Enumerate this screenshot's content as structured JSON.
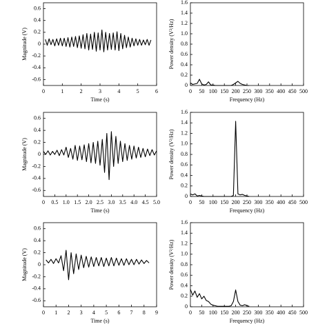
{
  "chart_data": [
    {
      "type": "line",
      "xlabel": "Time (s)",
      "ylabel": "Magnitude (V)",
      "color": "#000000",
      "xlim": [
        0,
        6
      ],
      "xticks": [
        0,
        1,
        2,
        3,
        4,
        5,
        6
      ],
      "ylim": [
        -0.7,
        0.7
      ],
      "yticks": [
        -0.6,
        -0.4,
        -0.2,
        0,
        0.2,
        0.4,
        0.6
      ],
      "x": [
        0.1,
        0.2,
        0.3,
        0.4,
        0.5,
        0.6,
        0.7,
        0.8,
        0.9,
        1.0,
        1.1,
        1.2,
        1.3,
        1.4,
        1.5,
        1.6,
        1.7,
        1.8,
        1.9,
        2.0,
        2.1,
        2.2,
        2.3,
        2.4,
        2.5,
        2.6,
        2.7,
        2.8,
        2.9,
        3.0,
        3.1,
        3.2,
        3.3,
        3.4,
        3.5,
        3.6,
        3.7,
        3.8,
        3.9,
        4.0,
        4.1,
        4.2,
        4.3,
        4.4,
        4.5,
        4.6,
        4.7,
        4.8,
        4.9,
        5.0,
        5.1,
        5.2,
        5.3,
        5.4,
        5.5,
        5.6,
        5.7
      ],
      "values": [
        0.08,
        -0.02,
        0.09,
        -0.01,
        0.08,
        -0.03,
        0.09,
        -0.02,
        0.1,
        -0.03,
        0.1,
        -0.04,
        0.11,
        -0.05,
        0.12,
        -0.04,
        0.13,
        -0.06,
        0.14,
        -0.07,
        0.16,
        -0.08,
        0.18,
        -0.1,
        0.17,
        -0.09,
        0.2,
        -0.12,
        0.19,
        -0.1,
        0.24,
        -0.13,
        0.2,
        -0.1,
        0.18,
        -0.09,
        0.19,
        -0.1,
        0.21,
        -0.11,
        0.18,
        -0.08,
        0.15,
        -0.06,
        0.12,
        -0.05,
        0.1,
        -0.03,
        0.09,
        -0.02,
        0.08,
        -0.02,
        0.07,
        -0.01,
        0.08,
        -0.02,
        0.07
      ]
    },
    {
      "type": "line",
      "xlabel": "Frequency (Hz)",
      "ylabel": "Power density (V²/Hz)",
      "color": "#000000",
      "xlim": [
        0,
        500
      ],
      "xticks": [
        0,
        50,
        100,
        150,
        200,
        250,
        300,
        350,
        400,
        450,
        500
      ],
      "ylim": [
        0,
        1.6
      ],
      "yticks": [
        0,
        0.2,
        0.4,
        0.6,
        0.8,
        {
          "value": 1,
          "label": "1.0"
        },
        1.2,
        1.4,
        1.6
      ],
      "x": [
        0,
        10,
        20,
        30,
        40,
        50,
        60,
        70,
        80,
        90,
        100,
        110,
        120,
        130,
        140,
        150,
        160,
        170,
        180,
        190,
        200,
        210,
        220,
        230,
        240,
        250,
        260
      ],
      "values": [
        0.05,
        0.02,
        0.03,
        0.04,
        0.12,
        0.03,
        0.01,
        0.02,
        0.07,
        0.01,
        0.01,
        0,
        0,
        0,
        0,
        0,
        0,
        0,
        0,
        0.02,
        0.05,
        0.08,
        0.04,
        0.02,
        0.01,
        0,
        0
      ]
    },
    {
      "type": "line",
      "xlabel": "Time (s)",
      "ylabel": "Magnitude (V)",
      "color": "#000000",
      "xlim": [
        0,
        5
      ],
      "xticks": [
        0,
        0.5,
        {
          "value": 1,
          "label": "1.0"
        },
        1.5,
        {
          "value": 2,
          "label": "2.0"
        },
        2.5,
        {
          "value": 3,
          "label": "3.0"
        },
        3.5,
        {
          "value": 4,
          "label": "4.0"
        },
        4.5,
        {
          "value": 5,
          "label": "5.0"
        }
      ],
      "ylim": [
        -0.7,
        0.7
      ],
      "yticks": [
        -0.6,
        -0.4,
        -0.2,
        0,
        0.2,
        0.4,
        0.6
      ],
      "x": [
        0.0,
        0.1,
        0.2,
        0.3,
        0.4,
        0.5,
        0.6,
        0.7,
        0.8,
        0.9,
        1.0,
        1.1,
        1.2,
        1.3,
        1.4,
        1.5,
        1.6,
        1.7,
        1.8,
        1.9,
        2.0,
        2.1,
        2.2,
        2.3,
        2.4,
        2.5,
        2.6,
        2.7,
        2.8,
        2.9,
        3.0,
        3.1,
        3.2,
        3.3,
        3.4,
        3.5,
        3.6,
        3.7,
        3.8,
        3.9,
        4.0,
        4.1,
        4.2,
        4.3,
        4.4,
        4.5,
        4.6,
        4.7,
        4.8,
        4.9,
        5.0
      ],
      "values": [
        0.05,
        0,
        0.06,
        -0.01,
        0.05,
        0,
        0.07,
        -0.02,
        0.08,
        -0.01,
        0.12,
        -0.05,
        0.1,
        -0.08,
        0.15,
        -0.1,
        0.14,
        -0.09,
        0.16,
        -0.12,
        0.18,
        -0.14,
        0.2,
        -0.15,
        0.22,
        -0.18,
        0.25,
        -0.3,
        0.35,
        -0.42,
        0.38,
        -0.2,
        0.3,
        -0.15,
        0.22,
        -0.12,
        0.18,
        -0.1,
        0.15,
        -0.08,
        0.14,
        -0.06,
        0.12,
        -0.05,
        0.1,
        -0.04,
        0.09,
        -0.02,
        0.08,
        -0.01,
        0.06
      ]
    },
    {
      "type": "line",
      "xlabel": "Frequency (Hz)",
      "ylabel": "Power density (V²/Hz)",
      "color": "#000000",
      "xlim": [
        0,
        500
      ],
      "xticks": [
        0,
        50,
        100,
        150,
        200,
        250,
        300,
        350,
        400,
        450,
        500
      ],
      "ylim": [
        0,
        1.6
      ],
      "yticks": [
        0,
        0.2,
        0.4,
        0.6,
        0.8,
        {
          "value": 1,
          "label": "1.0"
        },
        1.2,
        1.4,
        1.6
      ],
      "x": [
        0,
        10,
        20,
        30,
        40,
        50,
        60,
        70,
        80,
        90,
        100,
        110,
        120,
        130,
        140,
        150,
        160,
        170,
        180,
        190,
        200,
        210,
        220,
        230,
        240,
        250,
        260
      ],
      "values": [
        0.05,
        0.03,
        0.05,
        0.01,
        0.02,
        0.01,
        0,
        0,
        0,
        0,
        0,
        0,
        0,
        0,
        0,
        0,
        0,
        0,
        0,
        0.02,
        1.43,
        0.05,
        0.03,
        0.04,
        0.02,
        0.01,
        0
      ]
    },
    {
      "type": "line",
      "xlabel": "Time (s)",
      "ylabel": "Magnitude (V)",
      "color": "#000000",
      "xlim": [
        0,
        9
      ],
      "xticks": [
        0,
        1,
        2,
        3,
        4,
        5,
        6,
        7,
        8,
        9
      ],
      "ylim": [
        -0.7,
        0.7
      ],
      "yticks": [
        -0.6,
        -0.4,
        -0.2,
        0,
        0.2,
        0.4,
        0.6
      ],
      "x": [
        0.2,
        0.4,
        0.6,
        0.8,
        1.0,
        1.2,
        1.4,
        1.6,
        1.8,
        2.0,
        2.2,
        2.4,
        2.6,
        2.8,
        3.0,
        3.2,
        3.4,
        3.6,
        3.8,
        4.0,
        4.2,
        4.4,
        4.6,
        4.8,
        5.0,
        5.2,
        5.4,
        5.6,
        5.8,
        6.0,
        6.2,
        6.4,
        6.6,
        6.8,
        7.0,
        7.2,
        7.4,
        7.6,
        7.8,
        8.0,
        8.2,
        8.4
      ],
      "values": [
        0.08,
        0.03,
        0.09,
        0.02,
        0.1,
        0.03,
        0.15,
        -0.1,
        0.24,
        -0.25,
        0.2,
        -0.15,
        0.18,
        -0.08,
        0.16,
        -0.05,
        0.14,
        -0.04,
        0.13,
        -0.03,
        0.12,
        -0.02,
        0.12,
        -0.03,
        0.11,
        -0.02,
        0.12,
        -0.02,
        0.11,
        -0.01,
        0.1,
        -0.01,
        0.1,
        0,
        0.09,
        0,
        0.09,
        0.01,
        0.08,
        0.02,
        0.07,
        0.03
      ]
    },
    {
      "type": "line",
      "xlabel": "Frequency (Hz)",
      "ylabel": "Power density (V²/Hz)",
      "color": "#000000",
      "xlim": [
        0,
        500
      ],
      "xticks": [
        0,
        50,
        100,
        150,
        200,
        250,
        300,
        350,
        400,
        450,
        500
      ],
      "ylim": [
        0,
        1.6
      ],
      "yticks": [
        0,
        0.2,
        0.4,
        0.6,
        0.8,
        {
          "value": 1,
          "label": "1.0"
        },
        1.2,
        1.4,
        1.6
      ],
      "x": [
        0,
        10,
        20,
        30,
        40,
        50,
        60,
        70,
        80,
        90,
        100,
        110,
        120,
        130,
        140,
        150,
        160,
        170,
        180,
        190,
        200,
        210,
        220,
        230,
        240,
        250,
        260
      ],
      "values": [
        0.33,
        0.22,
        0.3,
        0.18,
        0.25,
        0.15,
        0.2,
        0.12,
        0.1,
        0.05,
        0.03,
        0.02,
        0.01,
        0.01,
        0.01,
        0.01,
        0.01,
        0.01,
        0.02,
        0.1,
        0.32,
        0.1,
        0.03,
        0.02,
        0.04,
        0.02,
        0.01
      ]
    }
  ]
}
